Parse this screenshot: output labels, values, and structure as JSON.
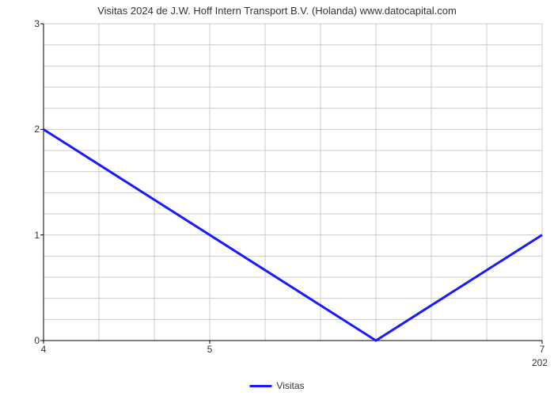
{
  "chart": {
    "type": "line",
    "title": "Visitas 2024 de J.W. Hoff Intern Transport B.V. (Holanda) www.datocapital.com",
    "title_fontsize": 13,
    "background_color": "#ffffff",
    "grid_color": "#cccccc",
    "axis_color": "#000000",
    "x": {
      "min": 4,
      "max": 7,
      "ticks": [
        4,
        5,
        7
      ],
      "sub_label": "202"
    },
    "y": {
      "min": 0,
      "max": 3,
      "ticks": [
        0,
        1,
        2,
        3
      ],
      "minor_step": 0.2
    },
    "x_grid": {
      "step": 0.333333,
      "count": 10
    },
    "series": [
      {
        "name": "Visitas",
        "color": "#1a1aff",
        "line_width": 3,
        "points": [
          {
            "x": 4.0,
            "y": 2.0
          },
          {
            "x": 6.0,
            "y": 0.0
          },
          {
            "x": 7.0,
            "y": 1.0
          }
        ]
      }
    ],
    "legend": {
      "label": "Visitas",
      "color": "#1a1aff",
      "position": "bottom-center"
    }
  }
}
